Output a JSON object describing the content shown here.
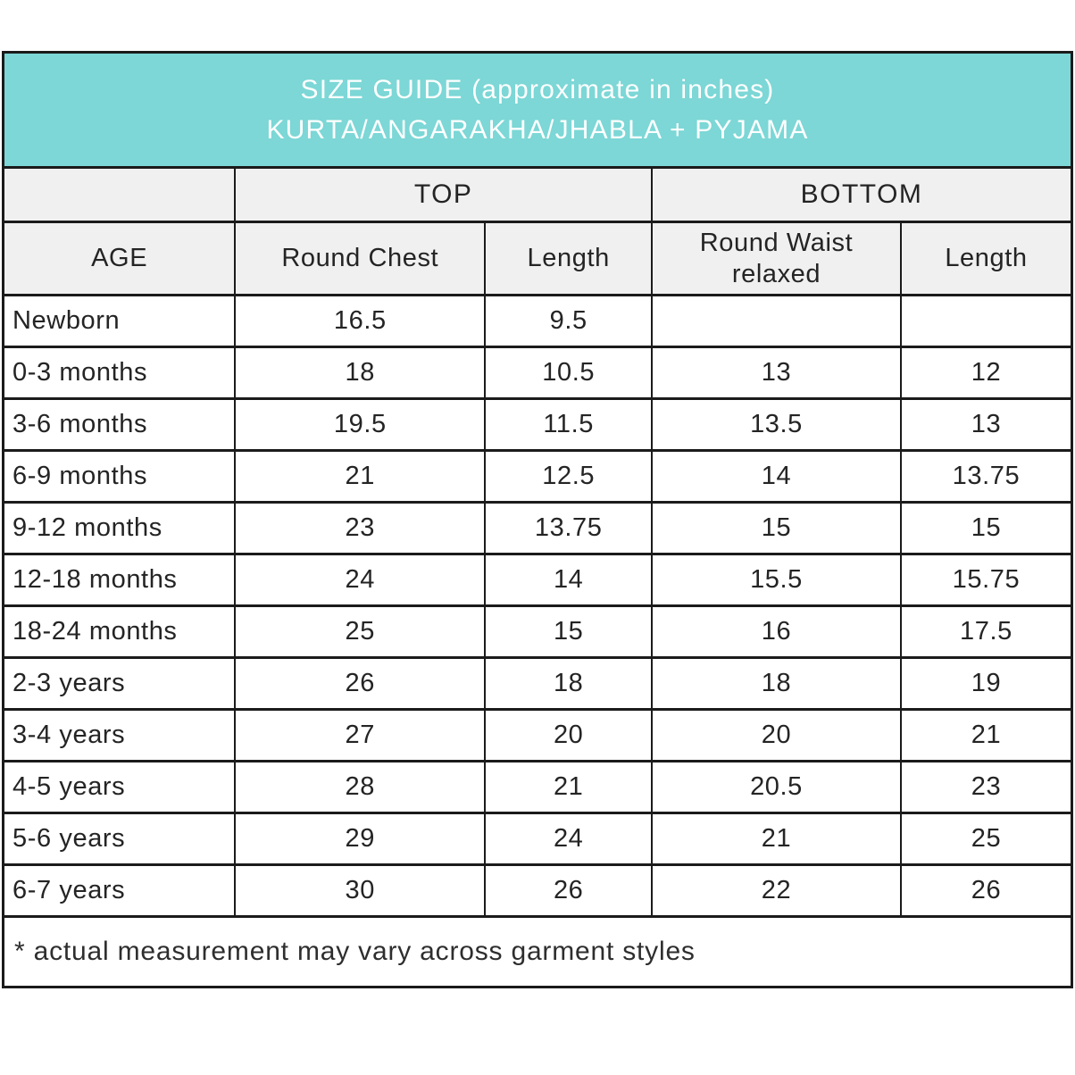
{
  "header": {
    "line1": "SIZE GUIDE (approximate in inches)",
    "line2": "KURTA/ANGARAKHA/JHABLA + PYJAMA"
  },
  "chart_data": {
    "type": "table",
    "title": "SIZE GUIDE (approximate in inches) KURTA/ANGARAKHA/JHABLA + PYJAMA",
    "units": "inches",
    "column_groups": [
      {
        "label": "TOP",
        "columns": [
          "Round Chest",
          "Length"
        ]
      },
      {
        "label": "BOTTOM",
        "columns": [
          "Round Waist relaxed",
          "Length"
        ]
      }
    ],
    "group_headers": {
      "top": "TOP",
      "bottom": "BOTTOM"
    },
    "columns": [
      "AGE",
      "Round Chest",
      "Length",
      "Round Waist relaxed",
      "Length"
    ],
    "rows": [
      [
        "Newborn",
        "16.5",
        "9.5",
        "",
        ""
      ],
      [
        "0-3 months",
        "18",
        "10.5",
        "13",
        "12"
      ],
      [
        "3-6 months",
        "19.5",
        "11.5",
        "13.5",
        "13"
      ],
      [
        "6-9 months",
        "21",
        "12.5",
        "14",
        "13.75"
      ],
      [
        "9-12 months",
        "23",
        "13.75",
        "15",
        "15"
      ],
      [
        "12-18 months",
        "24",
        "14",
        "15.5",
        "15.75"
      ],
      [
        "18-24 months",
        "25",
        "15",
        "16",
        "17.5"
      ],
      [
        "2-3 years",
        "26",
        "18",
        "18",
        "19"
      ],
      [
        "3-4 years",
        "27",
        "20",
        "20",
        "21"
      ],
      [
        "4-5 years",
        "28",
        "21",
        "20.5",
        "23"
      ],
      [
        "5-6 years",
        "29",
        "24",
        "21",
        "25"
      ],
      [
        "6-7 years",
        "30",
        "26",
        "22",
        "26"
      ]
    ]
  },
  "footer": {
    "note": "* actual measurement may vary across garment styles"
  },
  "colors": {
    "title_background": "#7cd7d6",
    "title_text": "#ffffff",
    "header_background": "#f0f0f0",
    "border": "#1b1b1b",
    "body_text": "#242424"
  }
}
